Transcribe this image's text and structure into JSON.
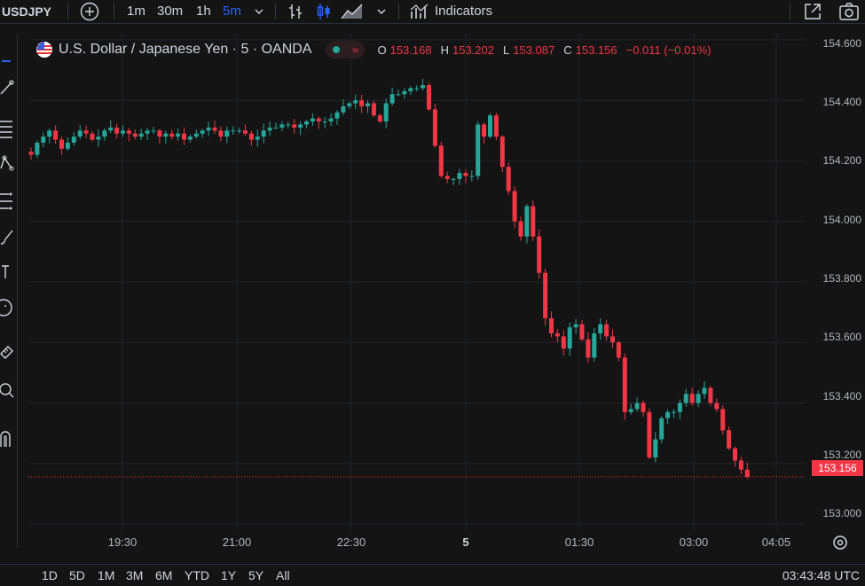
{
  "toolbar": {
    "symbol": "USDJPY",
    "intervals": [
      "1m",
      "30m",
      "1h",
      "5m"
    ],
    "active_interval": "5m",
    "indicators_label": "Indicators"
  },
  "legend": {
    "title": "U.S. Dollar / Japanese Yen · 5 · OANDA",
    "open_label": "O",
    "open": "153.168",
    "high_label": "H",
    "high": "153.202",
    "low_label": "L",
    "low": "153.087",
    "close_label": "C",
    "close": "153.156",
    "change": "−0.011 (−0.01%)"
  },
  "price_axis": [
    "154.600",
    "154.400",
    "154.200",
    "154.000",
    "153.800",
    "153.600",
    "153.400",
    "153.200",
    "153.000"
  ],
  "last_price": "153.156",
  "time_axis": [
    "19:30",
    "21:00",
    "22:30",
    "5",
    "01:30",
    "03:00",
    "04:05"
  ],
  "ranges": [
    "1D",
    "5D",
    "1M",
    "3M",
    "6M",
    "YTD",
    "1Y",
    "5Y",
    "All"
  ],
  "clock": "03:43:48 UTC",
  "colors": {
    "up": "#26a69a",
    "down": "#f23645",
    "background": "#141414"
  },
  "chart_data": {
    "type": "candlestick",
    "ylim": [
      152.98,
      154.62
    ],
    "price_ticks": [
      154.6,
      154.4,
      154.2,
      154.0,
      153.8,
      153.6,
      153.4,
      153.2,
      153.0
    ],
    "close_values": [
      154.22,
      154.26,
      154.28,
      154.3,
      154.27,
      154.24,
      154.26,
      154.28,
      154.3,
      154.29,
      154.27,
      154.28,
      154.3,
      154.31,
      154.29,
      154.3,
      154.29,
      154.28,
      154.29,
      154.3,
      154.3,
      154.28,
      154.29,
      154.28,
      154.29,
      154.27,
      154.28,
      154.29,
      154.3,
      154.31,
      154.3,
      154.28,
      154.3,
      154.3,
      154.3,
      154.29,
      154.27,
      154.28,
      154.3,
      154.31,
      154.31,
      154.32,
      154.32,
      154.31,
      154.32,
      154.33,
      154.34,
      154.33,
      154.33,
      154.34,
      154.36,
      154.38,
      154.39,
      154.4,
      154.38,
      154.39,
      154.35,
      154.33,
      154.39,
      154.42,
      154.42,
      154.43,
      154.44,
      154.44,
      154.45,
      154.37,
      154.25,
      154.15,
      154.14,
      154.14,
      154.16,
      154.15,
      154.15,
      154.32,
      154.28,
      154.35,
      154.28,
      154.18,
      154.1,
      154.0,
      153.95,
      154.05,
      153.95,
      153.83,
      153.68,
      153.63,
      153.62,
      153.58,
      153.65,
      153.66,
      153.61,
      153.55,
      153.63,
      153.66,
      153.62,
      153.6,
      153.55,
      153.37,
      153.38,
      153.4,
      153.37,
      153.22,
      153.28,
      153.35,
      153.37,
      153.37,
      153.4,
      153.43,
      153.4,
      153.43,
      153.45,
      153.4,
      153.38,
      153.31,
      153.25,
      153.21,
      153.18,
      153.156
    ],
    "x_labels": [
      "19:30",
      "21:00",
      "22:30",
      "5",
      "01:30",
      "03:00",
      "04:05"
    ]
  }
}
